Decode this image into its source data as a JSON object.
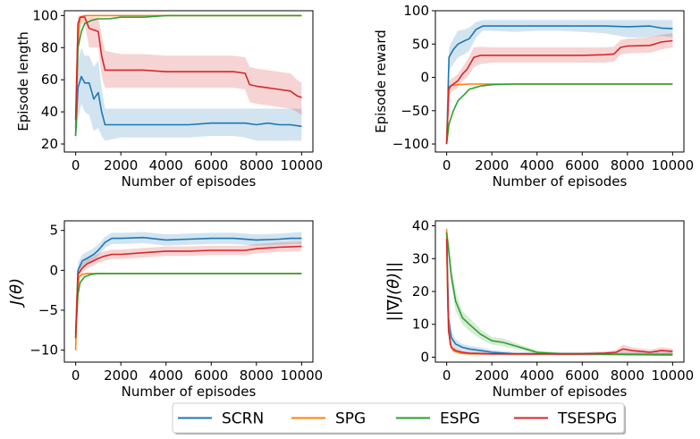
{
  "figure": {
    "legend": {
      "entries": [
        {
          "name": "SCRN",
          "color": "#1f77b4"
        },
        {
          "name": "SPG",
          "color": "#ff7f0e"
        },
        {
          "name": "ESPG",
          "color": "#2ca02c"
        },
        {
          "name": "TSESPG",
          "color": "#d62728"
        }
      ],
      "placement": "bottom-center"
    }
  },
  "chart_data": [
    {
      "type": "line",
      "xlabel": "Number of episodes",
      "ylabel": "Episode length",
      "xlim": [
        -500,
        10500
      ],
      "ylim": [
        15,
        103
      ],
      "xticks": [
        0,
        2000,
        4000,
        6000,
        8000,
        10000
      ],
      "yticks": [
        20,
        40,
        60,
        80,
        100
      ],
      "series": [
        {
          "name": "SCRN",
          "x": [
            0,
            100,
            250,
            400,
            600,
            800,
            1000,
            1150,
            1300,
            2000,
            3000,
            4000,
            5000,
            6000,
            7000,
            7500,
            8000,
            8500,
            9000,
            9500,
            10000
          ],
          "y": [
            25,
            55,
            62,
            58,
            58,
            48,
            52,
            40,
            32,
            32,
            32,
            32,
            32,
            33,
            33,
            33,
            32,
            33,
            32,
            32,
            31
          ],
          "lower": [
            20,
            35,
            45,
            40,
            38,
            28,
            30,
            25,
            22,
            24,
            24,
            24,
            24,
            25,
            25,
            24,
            22,
            22,
            22,
            22,
            22
          ],
          "upper": [
            35,
            72,
            80,
            75,
            75,
            68,
            72,
            55,
            42,
            42,
            42,
            42,
            42,
            42,
            42,
            42,
            42,
            42,
            42,
            42,
            42
          ]
        },
        {
          "name": "SPG",
          "x": [
            0,
            80,
            200,
            400,
            1000,
            2000,
            4000,
            6000,
            8000,
            10000
          ],
          "y": [
            30,
            80,
            99,
            100,
            100,
            100,
            100,
            100,
            100,
            100
          ]
        },
        {
          "name": "ESPG",
          "x": [
            0,
            100,
            250,
            400,
            700,
            1000,
            1500,
            2000,
            3000,
            4000,
            6000,
            8000,
            10000
          ],
          "y": [
            25,
            80,
            90,
            95,
            97,
            98,
            98,
            99,
            99,
            100,
            100,
            100,
            100
          ]
        },
        {
          "name": "TSESPG",
          "x": [
            0,
            100,
            200,
            400,
            600,
            800,
            1000,
            1150,
            1300,
            2000,
            3000,
            4000,
            5000,
            6000,
            7000,
            7500,
            7700,
            8000,
            8500,
            9000,
            9500,
            9800,
            10000
          ],
          "y": [
            35,
            95,
            99,
            99,
            92,
            91,
            90,
            75,
            66,
            66,
            66,
            65,
            65,
            65,
            65,
            64,
            57,
            56,
            55,
            54,
            53,
            50,
            49
          ],
          "lower": [
            25,
            85,
            95,
            95,
            80,
            80,
            80,
            62,
            55,
            55,
            55,
            55,
            55,
            55,
            55,
            54,
            46,
            45,
            44,
            43,
            42,
            40,
            38
          ],
          "upper": [
            45,
            100,
            100,
            100,
            99,
            99,
            99,
            88,
            78,
            76,
            76,
            75,
            75,
            75,
            75,
            74,
            68,
            67,
            66,
            65,
            64,
            60,
            58
          ]
        }
      ]
    },
    {
      "type": "line",
      "xlabel": "Number of episodes",
      "ylabel": "Episode reward",
      "xlim": [
        -500,
        10500
      ],
      "ylim": [
        -112,
        100
      ],
      "xticks": [
        0,
        2000,
        4000,
        6000,
        8000,
        10000
      ],
      "yticks": [
        -100,
        -50,
        0,
        50,
        100
      ],
      "series": [
        {
          "name": "SCRN",
          "x": [
            0,
            100,
            300,
            500,
            800,
            1000,
            1300,
            1600,
            2000,
            3000,
            4000,
            5000,
            6000,
            7000,
            8000,
            9000,
            9500,
            10000
          ],
          "y": [
            -100,
            30,
            42,
            50,
            55,
            58,
            72,
            77,
            77,
            77,
            77,
            77,
            77,
            77,
            76,
            77,
            74,
            73
          ],
          "lower": [
            -100,
            10,
            20,
            30,
            35,
            40,
            60,
            70,
            70,
            68,
            70,
            70,
            68,
            66,
            60,
            60,
            62,
            60
          ],
          "upper": [
            -80,
            45,
            58,
            70,
            72,
            75,
            83,
            86,
            86,
            86,
            86,
            86,
            86,
            86,
            86,
            86,
            86,
            86
          ]
        },
        {
          "name": "SPG",
          "x": [
            0,
            80,
            200,
            500,
            1000,
            2000,
            4000,
            6000,
            8000,
            10000
          ],
          "y": [
            -100,
            -20,
            -12,
            -11,
            -10,
            -10,
            -10,
            -10,
            -10,
            -10
          ]
        },
        {
          "name": "ESPG",
          "x": [
            0,
            100,
            300,
            500,
            800,
            1000,
            1500,
            2000,
            3000,
            4000,
            6000,
            8000,
            10000
          ],
          "y": [
            -100,
            -70,
            -50,
            -35,
            -25,
            -18,
            -13,
            -11,
            -10,
            -10,
            -10,
            -10,
            -10
          ]
        },
        {
          "name": "TSESPG",
          "x": [
            0,
            100,
            300,
            500,
            700,
            900,
            1200,
            1500,
            2000,
            3000,
            4000,
            5000,
            6000,
            7000,
            7400,
            7700,
            8000,
            9000,
            9500,
            10000
          ],
          "y": [
            -100,
            -15,
            -10,
            -5,
            5,
            12,
            30,
            33,
            33,
            33,
            33,
            33,
            33,
            34,
            35,
            45,
            47,
            48,
            53,
            55
          ],
          "lower": [
            -100,
            -25,
            -20,
            -15,
            -5,
            0,
            15,
            20,
            22,
            22,
            22,
            22,
            22,
            22,
            24,
            34,
            36,
            37,
            42,
            45
          ],
          "upper": [
            -80,
            -5,
            0,
            5,
            15,
            25,
            45,
            46,
            45,
            45,
            45,
            45,
            45,
            45,
            46,
            56,
            58,
            60,
            64,
            66
          ]
        }
      ]
    },
    {
      "type": "line",
      "xlabel": "Number of episodes",
      "ylabel": "J(θ)",
      "xlim": [
        -500,
        10500
      ],
      "ylim": [
        -11.5,
        6.2
      ],
      "xticks": [
        0,
        2000,
        4000,
        6000,
        8000,
        10000
      ],
      "yticks": [
        -10,
        -5,
        0,
        5
      ],
      "series": [
        {
          "name": "SCRN",
          "x": [
            0,
            100,
            300,
            500,
            800,
            1000,
            1300,
            1600,
            2000,
            3000,
            4000,
            5000,
            6000,
            7000,
            8000,
            9000,
            9500,
            10000
          ],
          "y": [
            -8,
            0,
            1.2,
            1.5,
            2.0,
            2.5,
            3.5,
            4.0,
            4.0,
            4.1,
            3.8,
            3.9,
            4.0,
            4.0,
            3.8,
            3.9,
            4.0,
            4.0
          ],
          "lower": [
            -9,
            -1,
            0.4,
            0.8,
            1.3,
            1.8,
            2.8,
            3.3,
            3.3,
            3.4,
            3.1,
            3.2,
            3.3,
            3.3,
            3.1,
            3.2,
            3.3,
            3.3
          ],
          "upper": [
            -7,
            1,
            2.0,
            2.3,
            2.8,
            3.2,
            4.2,
            4.7,
            4.7,
            4.8,
            4.5,
            4.6,
            4.7,
            4.7,
            4.5,
            4.6,
            4.7,
            4.8
          ]
        },
        {
          "name": "SPG",
          "x": [
            0,
            60,
            150,
            300,
            500,
            1000,
            2000,
            4000,
            6000,
            8000,
            10000
          ],
          "y": [
            -10,
            -3,
            -0.8,
            -0.5,
            -0.4,
            -0.4,
            -0.4,
            -0.4,
            -0.4,
            -0.4,
            -0.4
          ]
        },
        {
          "name": "ESPG",
          "x": [
            0,
            100,
            200,
            400,
            700,
            1000,
            2000,
            4000,
            6000,
            8000,
            10000
          ],
          "y": [
            -8.5,
            -3,
            -1.5,
            -0.8,
            -0.5,
            -0.4,
            -0.4,
            -0.4,
            -0.4,
            -0.4,
            -0.4
          ]
        },
        {
          "name": "TSESPG",
          "x": [
            0,
            100,
            300,
            500,
            800,
            1000,
            1300,
            1600,
            2000,
            3000,
            4000,
            5000,
            6000,
            7000,
            7500,
            8000,
            9000,
            10000
          ],
          "y": [
            -8.5,
            -0.5,
            0.3,
            0.8,
            1.2,
            1.5,
            1.8,
            2.0,
            2.0,
            2.2,
            2.4,
            2.4,
            2.5,
            2.5,
            2.5,
            2.7,
            2.9,
            3.0
          ],
          "lower": [
            -9,
            -1,
            -0.3,
            0.2,
            0.6,
            0.9,
            1.2,
            1.4,
            1.4,
            1.6,
            1.8,
            1.8,
            1.9,
            1.9,
            1.9,
            2.1,
            2.3,
            2.4
          ],
          "upper": [
            -8,
            0,
            0.9,
            1.4,
            1.8,
            2.1,
            2.4,
            2.6,
            2.6,
            2.8,
            3.0,
            3.0,
            3.1,
            3.1,
            3.1,
            3.3,
            3.5,
            3.6
          ]
        }
      ]
    },
    {
      "type": "line",
      "xlabel": "Number of episodes",
      "ylabel": "||∇J(θ)||",
      "xlim": [
        -500,
        10500
      ],
      "ylim": [
        -1.5,
        41.5
      ],
      "xticks": [
        0,
        2000,
        4000,
        6000,
        8000,
        10000
      ],
      "yticks": [
        0,
        10,
        20,
        30,
        40
      ],
      "series": [
        {
          "name": "SCRN",
          "x": [
            0,
            80,
            200,
            400,
            700,
            1000,
            1500,
            2000,
            3000,
            4000,
            6000,
            8000,
            10000
          ],
          "y": [
            38,
            12,
            6,
            4,
            3,
            2.5,
            2,
            1.5,
            1,
            1,
            1,
            1,
            1
          ],
          "lower": [
            36,
            9,
            4,
            2.5,
            2,
            1.5,
            1.2,
            0.8,
            0.5,
            0.5,
            0.5,
            0.5,
            0.5
          ],
          "upper": [
            40,
            15,
            8,
            5.5,
            4,
            3.5,
            3,
            2.2,
            1.6,
            1.6,
            1.6,
            1.6,
            1.6
          ]
        },
        {
          "name": "SPG",
          "x": [
            0,
            50,
            150,
            300,
            600,
            1000,
            2000,
            4000,
            6000,
            8000,
            10000
          ],
          "y": [
            39,
            15,
            4,
            2,
            1.2,
            1,
            1,
            1,
            1,
            1,
            1
          ]
        },
        {
          "name": "ESPG",
          "x": [
            0,
            80,
            200,
            400,
            700,
            1000,
            1500,
            2000,
            2500,
            3000,
            3500,
            4000,
            5000,
            6000,
            8000,
            10000
          ],
          "y": [
            38,
            33,
            25,
            17,
            12,
            10,
            7,
            5,
            4.5,
            3.5,
            2.5,
            1.5,
            1,
            1,
            0.8,
            0.7
          ],
          "lower": [
            36,
            30,
            22,
            14,
            10,
            8,
            5.5,
            3.8,
            3.3,
            2.6,
            1.8,
            1,
            0.6,
            0.6,
            0.5,
            0.4
          ],
          "upper": [
            40,
            36,
            28,
            20,
            14,
            12,
            8.5,
            6.2,
            5.7,
            4.4,
            3.2,
            2,
            1.4,
            1.4,
            1.1,
            1
          ]
        },
        {
          "name": "TSESPG",
          "x": [
            0,
            80,
            200,
            400,
            700,
            1000,
            2000,
            3000,
            4000,
            6000,
            7000,
            7500,
            7800,
            8200,
            9000,
            9500,
            10000
          ],
          "y": [
            36,
            8,
            3,
            2,
            1.5,
            1.2,
            1,
            1,
            1,
            1,
            1.2,
            1.5,
            2.5,
            2,
            1.5,
            2,
            1.8
          ],
          "lower": [
            34,
            6,
            2,
            1.3,
            1,
            0.8,
            0.6,
            0.6,
            0.6,
            0.6,
            0.7,
            0.8,
            1.2,
            1,
            0.8,
            1,
            0.9
          ],
          "upper": [
            38,
            10,
            4,
            2.7,
            2,
            1.6,
            1.4,
            1.4,
            1.4,
            1.4,
            1.7,
            2.2,
            3.8,
            3,
            2.3,
            3,
            2.7
          ]
        }
      ]
    }
  ]
}
